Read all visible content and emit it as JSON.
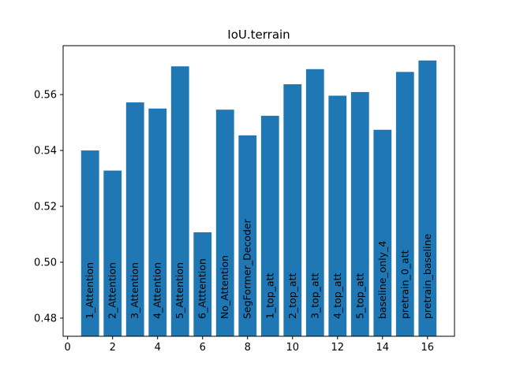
{
  "chart_data": {
    "type": "bar",
    "title": "IoU.terrain",
    "xlabel": "",
    "ylabel": "",
    "xlim": [
      -0.2,
      17.2
    ],
    "ylim": [
      0.4735,
      0.5775
    ],
    "xticks": [
      0,
      2,
      4,
      6,
      8,
      10,
      12,
      14,
      16
    ],
    "yticks": [
      0.48,
      0.5,
      0.52,
      0.54,
      0.56
    ],
    "ytick_labels": [
      "0.48",
      "0.50",
      "0.52",
      "0.54",
      "0.56"
    ],
    "bar_color": "#1f77b4",
    "grid": false,
    "bars": [
      {
        "x": 1,
        "value": 0.54,
        "label": "1_Attention"
      },
      {
        "x": 2,
        "value": 0.5328,
        "label": "2_Attention"
      },
      {
        "x": 3,
        "value": 0.5572,
        "label": "3_Attention"
      },
      {
        "x": 4,
        "value": 0.555,
        "label": "4_Attention"
      },
      {
        "x": 5,
        "value": 0.5701,
        "label": "5_Attention"
      },
      {
        "x": 6,
        "value": 0.5107,
        "label": "6_Atttention"
      },
      {
        "x": 7,
        "value": 0.5546,
        "label": "No_Attention"
      },
      {
        "x": 8,
        "value": 0.5454,
        "label": "SegFormer_Decoder"
      },
      {
        "x": 9,
        "value": 0.5524,
        "label": "1_top_att"
      },
      {
        "x": 10,
        "value": 0.5637,
        "label": "2_top_att"
      },
      {
        "x": 11,
        "value": 0.5691,
        "label": "3_top_att"
      },
      {
        "x": 12,
        "value": 0.5596,
        "label": "4_top_att"
      },
      {
        "x": 13,
        "value": 0.5609,
        "label": "5_top_att"
      },
      {
        "x": 14,
        "value": 0.5474,
        "label": "baseline_only_4"
      },
      {
        "x": 15,
        "value": 0.5681,
        "label": "pretrain_0_att"
      },
      {
        "x": 16,
        "value": 0.5722,
        "label": "pretrain_baseline"
      }
    ]
  }
}
